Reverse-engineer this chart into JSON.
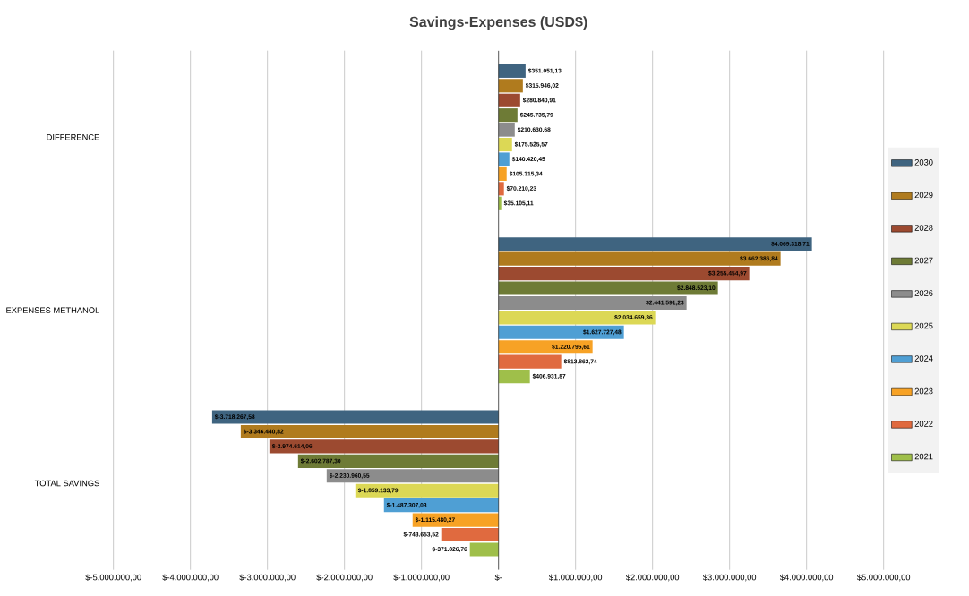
{
  "chart_data": {
    "type": "bar",
    "orientation": "horizontal",
    "title": "Savings-Expenses (USD$)",
    "categories": [
      "DIFFERENCE",
      "EXPENSES METHANOL",
      "TOTAL SAVINGS"
    ],
    "xlim": [
      -5000000,
      5000000
    ],
    "xticks": [
      {
        "value": -5000000,
        "label": "$-5.000.000,00"
      },
      {
        "value": -4000000,
        "label": "$-4.000.000,00"
      },
      {
        "value": -3000000,
        "label": "$-3.000.000,00"
      },
      {
        "value": -2000000,
        "label": "$-2.000.000,00"
      },
      {
        "value": -1000000,
        "label": "$-1.000.000,00"
      },
      {
        "value": 0,
        "label": "$-"
      },
      {
        "value": 1000000,
        "label": "$1.000.000,00"
      },
      {
        "value": 2000000,
        "label": "$2.000.000,00"
      },
      {
        "value": 3000000,
        "label": "$3.000.000,00"
      },
      {
        "value": 4000000,
        "label": "$4.000.000,00"
      },
      {
        "value": 5000000,
        "label": "$5.000.000,00"
      }
    ],
    "grid": "x",
    "legend": "right",
    "series": [
      {
        "name": "2021",
        "color": "#9fbf4a",
        "values": [
          35105.11,
          406931.87,
          -371826.76
        ],
        "value_labels": [
          "$35.105,11",
          "$406.931,87",
          "$-371.826,76"
        ]
      },
      {
        "name": "2022",
        "color": "#e06a3f",
        "values": [
          70210.23,
          813863.74,
          -743653.52
        ],
        "value_labels": [
          "$70.210,23",
          "$813.863,74",
          "$-743.653,52"
        ]
      },
      {
        "name": "2023",
        "color": "#f7a225",
        "values": [
          105315.34,
          1220795.61,
          -1115480.27
        ],
        "value_labels": [
          "$105.315,34",
          "$1.220.795,61",
          "$-1.115.480,27"
        ]
      },
      {
        "name": "2024",
        "color": "#4f9fd4",
        "values": [
          140420.45,
          1627727.48,
          -1487307.03
        ],
        "value_labels": [
          "$140.420,45",
          "$1.627.727,48",
          "$-1.487.307,03"
        ]
      },
      {
        "name": "2025",
        "color": "#dcd855",
        "values": [
          175525.57,
          2034659.36,
          -1859133.79
        ],
        "value_labels": [
          "$175.525,57",
          "$2.034.659,36",
          "$-1.859.133,79"
        ]
      },
      {
        "name": "2026",
        "color": "#8c8c8c",
        "values": [
          210630.68,
          2441591.23,
          -2230960.55
        ],
        "value_labels": [
          "$210.630,68",
          "$2.441.591,23",
          "$-2.230.960,55"
        ]
      },
      {
        "name": "2027",
        "color": "#6e7b36",
        "values": [
          245735.79,
          2848523.1,
          -2602787.3
        ],
        "value_labels": [
          "$245.735,79",
          "$2.848.523,10",
          "$-2.602.787,30"
        ]
      },
      {
        "name": "2028",
        "color": "#9c4a30",
        "values": [
          280840.91,
          3255454.97,
          -2974614.06
        ],
        "value_labels": [
          "$280.840,91",
          "$3.255.454,97",
          "$-2.974.614,06"
        ]
      },
      {
        "name": "2029",
        "color": "#b07b1e",
        "values": [
          315946.02,
          3662386.84,
          -3346440.82
        ],
        "value_labels": [
          "$315.946,02",
          "$3.662.386,84",
          "$-3.346.440,82"
        ]
      },
      {
        "name": "2030",
        "color": "#3f6480",
        "values": [
          351051.13,
          4069318.71,
          -3718267.58
        ],
        "value_labels": [
          "$351.051,13",
          "$4.069.318,71",
          "$-3.718.267,58"
        ]
      }
    ]
  }
}
